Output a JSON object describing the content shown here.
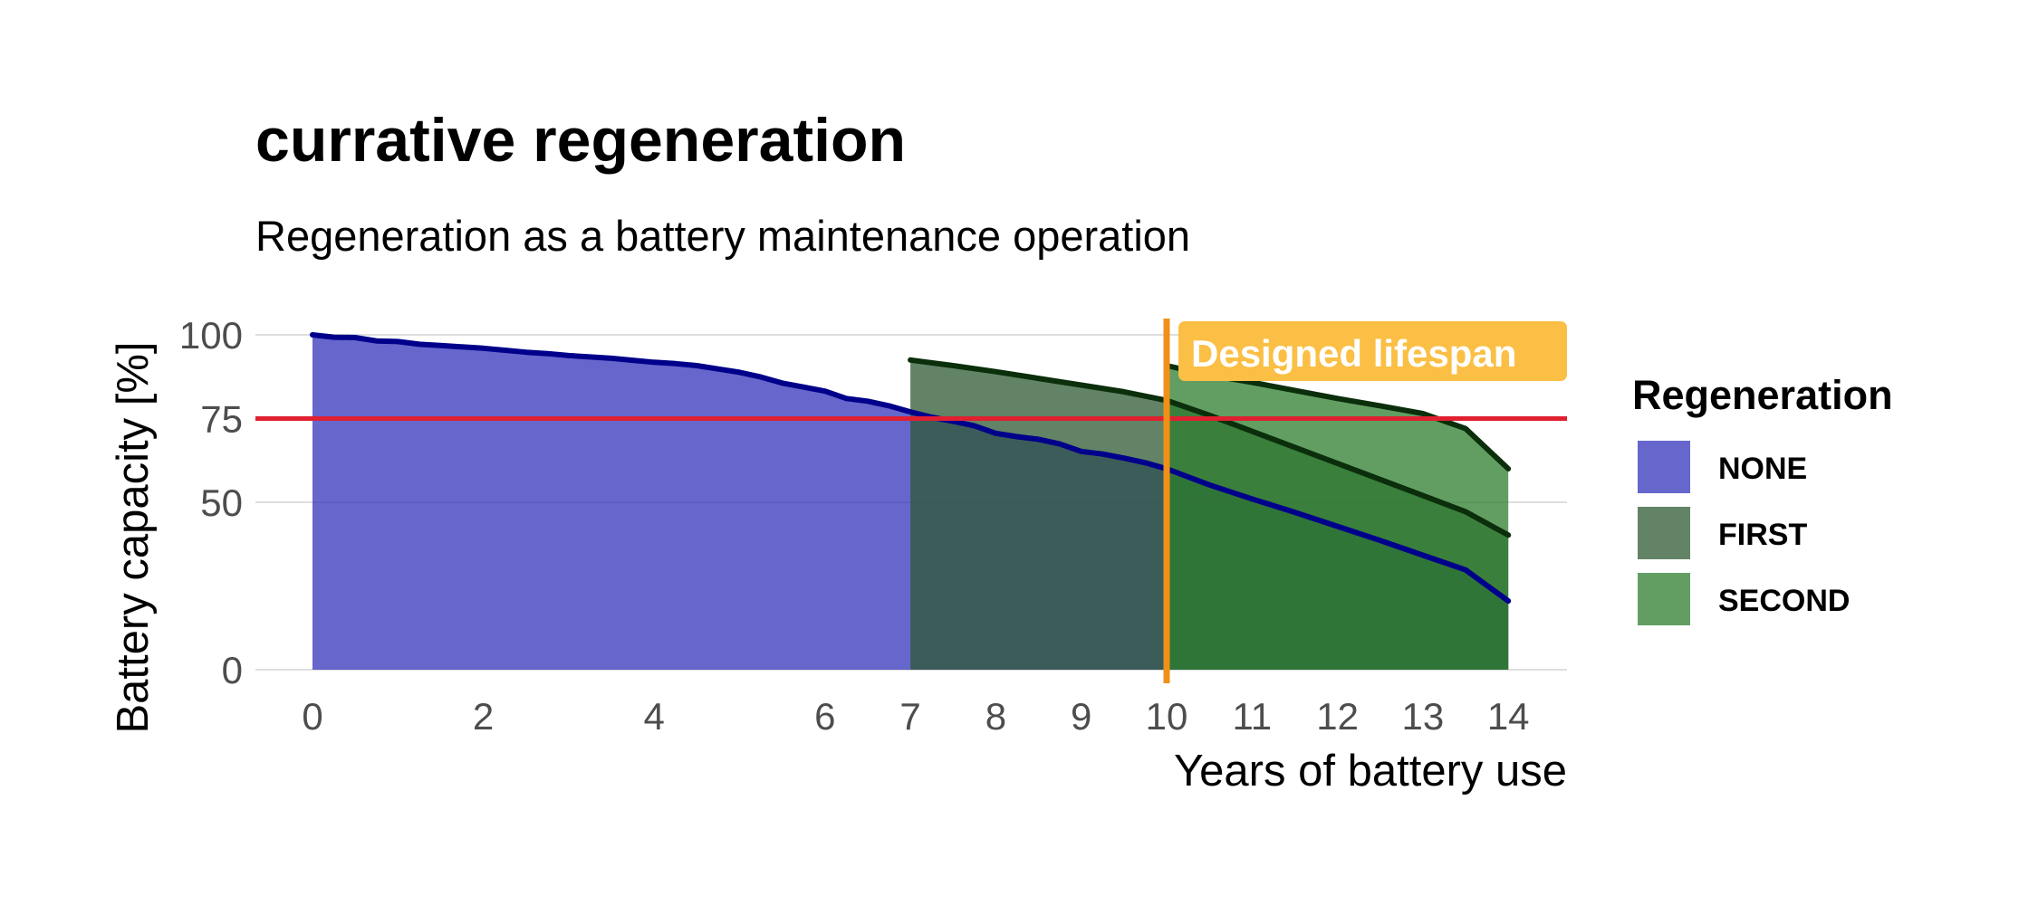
{
  "chart_data": {
    "type": "area",
    "title": "currative regeneration",
    "subtitle": "Regeneration as a battery maintenance operation",
    "xlabel": "Years of battery use",
    "ylabel": "Battery capacity [%]",
    "xlim": [
      0,
      14.5
    ],
    "ylim": [
      0,
      100
    ],
    "x_ticks": [
      0,
      2,
      4,
      6,
      7,
      8,
      9,
      10,
      11,
      12,
      13,
      14
    ],
    "y_ticks": [
      0,
      50,
      75,
      100
    ],
    "grid": true,
    "series": [
      {
        "name": "NONE",
        "color": "#3333BB",
        "line_color": "#00008B",
        "x": [
          0,
          0.25,
          0.5,
          0.75,
          1,
          1.25,
          1.5,
          1.75,
          2,
          2.25,
          2.5,
          2.75,
          3,
          3.25,
          3.5,
          3.75,
          4,
          4.25,
          4.5,
          4.75,
          5,
          5.25,
          5.5,
          5.75,
          6,
          6.25,
          6.5,
          6.75,
          7,
          7.25,
          7.5,
          7.75,
          8,
          8.25,
          8.5,
          8.75,
          9,
          9.25,
          9.5,
          9.75,
          10,
          10.5,
          11,
          11.5,
          12,
          12.5,
          13,
          13.5,
          14
        ],
        "values": [
          100,
          99.3,
          99.2,
          98.2,
          98,
          97.2,
          96.8,
          96.4,
          96,
          95.4,
          94.8,
          94.4,
          93.8,
          93.4,
          93,
          92.4,
          91.8,
          91.4,
          90.8,
          89.8,
          88.8,
          87.4,
          85.6,
          84.4,
          83.2,
          81,
          80.2,
          78.8,
          77,
          75.4,
          74.2,
          72.8,
          70.6,
          69.6,
          68.8,
          67.4,
          65.2,
          64.4,
          63.2,
          61.8,
          60,
          55.2,
          51,
          47,
          42.8,
          38.6,
          34.2,
          29.8,
          20.5
        ]
      },
      {
        "name": "FIRST",
        "color": "#2D5A32",
        "line_color": "#0B2E0B",
        "x": [
          7,
          7.5,
          8,
          8.5,
          9,
          9.5,
          10,
          10.5,
          11,
          11.5,
          12,
          12.5,
          13,
          13.5,
          14
        ],
        "values": [
          92.5,
          90.8,
          89,
          87,
          85,
          83,
          80.4,
          76,
          71.2,
          66.4,
          61.6,
          56.8,
          52,
          47.2,
          40.2
        ]
      },
      {
        "name": "SECOND",
        "color": "#2E7D2E",
        "line_color": "#0B2E0B",
        "x": [
          10,
          10.5,
          11,
          11.5,
          12,
          12.5,
          13,
          13.5,
          14
        ],
        "values": [
          90.8,
          88,
          85.8,
          83.4,
          81,
          78.8,
          76.5,
          72,
          60
        ]
      }
    ],
    "reference_lines": [
      {
        "axis": "y",
        "value": 75,
        "color": "#E02030"
      },
      {
        "axis": "x",
        "value": 10,
        "color": "#F09018"
      }
    ],
    "annotation": {
      "text": "Designed lifespan",
      "color": "#FBBF45"
    },
    "legend": {
      "title": "Regeneration",
      "placement": "right",
      "entries": [
        "NONE",
        "FIRST",
        "SECOND"
      ]
    }
  }
}
